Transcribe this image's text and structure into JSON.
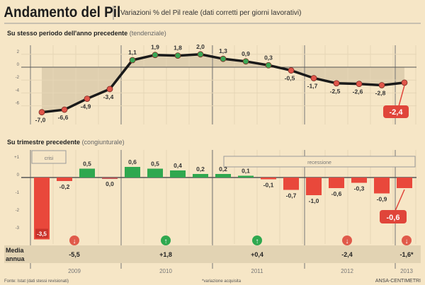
{
  "title": "Andamento del Pil",
  "subtitle": "Variazioni % del Pil reale (dati corretti per giorni lavorativi)",
  "chart_data": [
    {
      "type": "line",
      "title": "Su stesso periodo dell'anno precedente",
      "title_note": "(tendenziale)",
      "x": [
        "2009 T1",
        "2009 T2",
        "2009 T3",
        "2009 T4",
        "2010 T1",
        "2010 T2",
        "2010 T3",
        "2010 T4",
        "2011 T1",
        "2011 T2",
        "2011 T3",
        "2011 T4",
        "2012 T1",
        "2012 T2",
        "2012 T3",
        "2012 T4",
        "2013 T1"
      ],
      "values": [
        -7.0,
        -6.6,
        -4.9,
        -3.4,
        1.1,
        1.9,
        1.8,
        2.0,
        1.3,
        0.9,
        0.3,
        -0.5,
        -1.7,
        -2.5,
        -2.6,
        -2.8,
        -2.4
      ],
      "labels": [
        "-7,0",
        "-6,6",
        "-4,9",
        "-3,4",
        "1,1",
        "1,9",
        "1,8",
        "2,0",
        "1,3",
        "0,9",
        "0,3",
        "-0,5",
        "-1,7",
        "-2,5",
        "-2,6",
        "-2,8",
        "-2,4"
      ],
      "yticks": [
        "2",
        "0",
        "-2",
        "-4",
        "-6"
      ],
      "ylim": [
        -8,
        3
      ],
      "highlight": "-2,4",
      "colors": {
        "positive": "#3aa655",
        "negative": "#e0564a",
        "line": "#1a1a1a",
        "highlight": "#e0453a"
      },
      "grid": true
    },
    {
      "type": "bar",
      "title": "Su trimestre precedente",
      "title_note": "(congiunturale)",
      "x": [
        "2009 T1",
        "2009 T2",
        "2009 T3",
        "2009 T4",
        "2010 T1",
        "2010 T2",
        "2010 T3",
        "2010 T4",
        "2011 T1",
        "2011 T2",
        "2011 T3",
        "2011 T4",
        "2012 T1",
        "2012 T2",
        "2012 T3",
        "2012 T4",
        "2013 T1"
      ],
      "values": [
        -3.5,
        -0.2,
        0.5,
        0.0,
        0.6,
        0.5,
        0.4,
        0.2,
        0.2,
        0.1,
        -0.1,
        -0.7,
        -1.0,
        -0.6,
        -0.3,
        -0.9,
        -0.6
      ],
      "labels": [
        "-3,5",
        "-0,2",
        "0,5",
        "0,0",
        "0,6",
        "0,5",
        "0,4",
        "0,2",
        "0,2",
        "0,1",
        "-0,1",
        "-0,7",
        "-1,0",
        "-0,6",
        "-0,3",
        "-0,9",
        "-0,6"
      ],
      "yticks": [
        "+1",
        "0",
        "-1",
        "-2",
        "-3"
      ],
      "ylim": [
        -3.7,
        1.2
      ],
      "highlight": "-0,6",
      "annotations": [
        "crisi",
        "recessione"
      ],
      "colors": {
        "positive": "#2fa84f",
        "negative": "#e9483b"
      },
      "grid": true
    }
  ],
  "annual": {
    "label_line1": "Media",
    "label_line2": "annua",
    "years": [
      "2009",
      "2010",
      "2011",
      "2012",
      "2013"
    ],
    "values": [
      "-5,5",
      "+1,8",
      "+0,4",
      "-2,4",
      "-1,6*"
    ],
    "trend_icons": [
      "arrow-down",
      "arrow-up",
      "arrow-up",
      "arrow-down",
      "arrow-down"
    ]
  },
  "footer": {
    "source": "Fonte: Istat (dati stessi revisionati)",
    "note": "*variazione acquisita",
    "credit": "ANSA-CENTIMETRI"
  }
}
